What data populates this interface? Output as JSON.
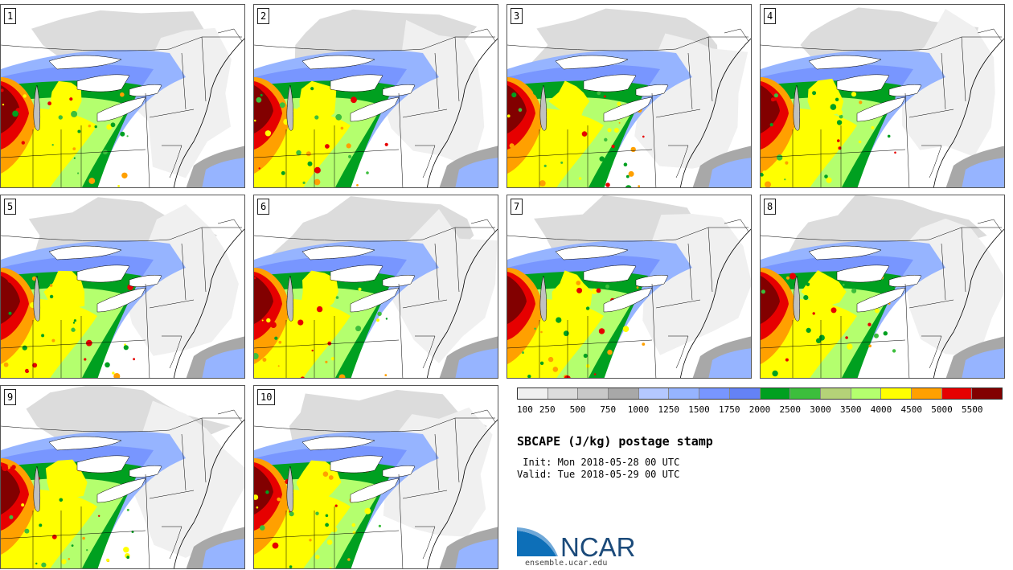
{
  "panels": [
    {
      "label": "1"
    },
    {
      "label": "2"
    },
    {
      "label": "3"
    },
    {
      "label": "4"
    },
    {
      "label": "5"
    },
    {
      "label": "6"
    },
    {
      "label": "7"
    },
    {
      "label": "8"
    },
    {
      "label": "9"
    },
    {
      "label": "10"
    }
  ],
  "colorbar": {
    "tick_labels": [
      "100",
      "250",
      "500",
      "750",
      "1000",
      "1250",
      "1500",
      "1750",
      "2000",
      "2500",
      "3000",
      "3500",
      "4000",
      "4500",
      "5000",
      "5500"
    ],
    "colors": [
      "#f0f0f0",
      "#dcdcdc",
      "#c8c8c8",
      "#a8a8a8",
      "#b4c8ff",
      "#96b4ff",
      "#7896ff",
      "#6482f5",
      "#00a020",
      "#3cbe3c",
      "#b4d278",
      "#b4ff6e",
      "#ffff00",
      "#ffa000",
      "#e60000",
      "#820000"
    ]
  },
  "title": "SBCAPE (J/kg) postage stamp",
  "init_text": " Init: Mon 2018-05-28 00 UTC",
  "valid_text": "Valid: Tue 2018-05-29 00 UTC",
  "logo": {
    "text": "NCAR",
    "url": "ensemble.ucar.edu",
    "color": "#1b4a7a",
    "swoosh": "#0d6fb8"
  }
}
